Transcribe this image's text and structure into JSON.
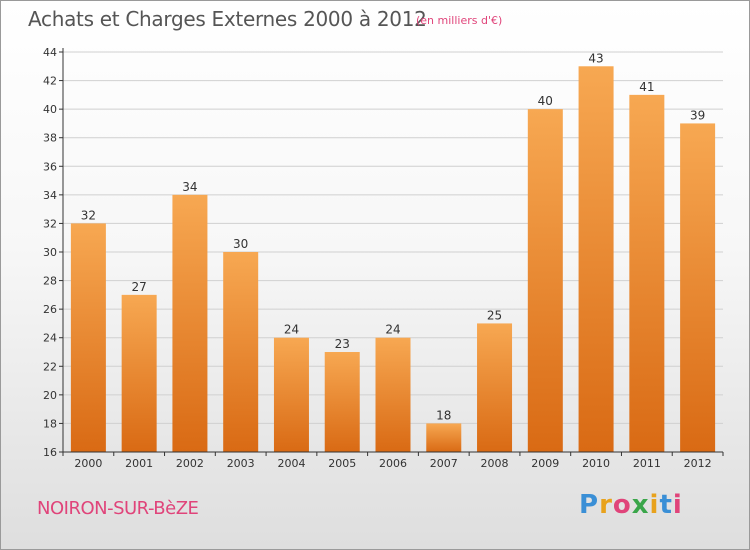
{
  "header": {
    "title": "Achats et Charges Externes 2000 à 2012",
    "subtitle": "(en milliers d'€)"
  },
  "footer": {
    "commune": "NOIRON-SUR-BèZE",
    "logo": {
      "letters": [
        "P",
        "r",
        "o",
        "x",
        "i",
        "t",
        "i"
      ],
      "colors": [
        "#3a8fd6",
        "#e8a21c",
        "#e0447a",
        "#3aa64a",
        "#e8a21c",
        "#3a8fd6",
        "#e0447a"
      ]
    }
  },
  "chart_data": {
    "type": "bar",
    "title": "Achats et Charges Externes 2000 à 2012",
    "subtitle": "(en milliers d'€)",
    "categories": [
      "2000",
      "2001",
      "2002",
      "2003",
      "2004",
      "2005",
      "2006",
      "2007",
      "2008",
      "2009",
      "2010",
      "2011",
      "2012"
    ],
    "values": [
      32,
      27,
      34,
      30,
      24,
      23,
      24,
      18,
      25,
      40,
      43,
      41,
      39
    ],
    "data_labels": [
      "32",
      "27",
      "34",
      "30",
      "24",
      "23",
      "24",
      "18",
      "25",
      "40",
      "43",
      "41",
      "39"
    ],
    "ylim": [
      16,
      44
    ],
    "yticks": [
      16,
      18,
      20,
      22,
      24,
      26,
      28,
      30,
      32,
      34,
      36,
      38,
      40,
      42,
      44
    ],
    "grid": true,
    "colors": {
      "bar_top": "#f7a852",
      "bar_bottom": "#d96a14",
      "grid": "#d0d0d0",
      "axis": "#333333",
      "label": "#333333"
    }
  }
}
